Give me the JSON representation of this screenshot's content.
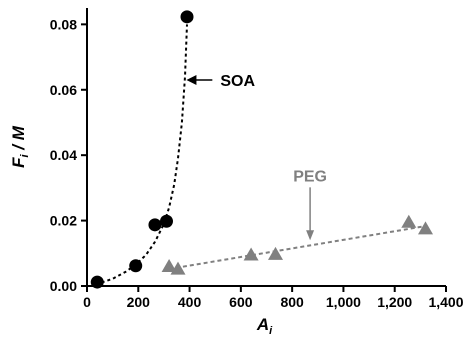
{
  "chart_data": {
    "type": "scatter",
    "title": "",
    "xlabel": {
      "main": "A",
      "sub": "i"
    },
    "ylabel": {
      "main": "F",
      "sub": "i",
      "rest": " / M"
    },
    "xlim": [
      0,
      1400
    ],
    "ylim": [
      0,
      0.085
    ],
    "x_ticks": [
      0,
      200,
      400,
      600,
      800,
      1000,
      1200,
      1400
    ],
    "x_tick_labels": [
      "0",
      "200",
      "400",
      "600",
      "800",
      "1,000",
      "1,200",
      "1,400"
    ],
    "y_ticks": [
      0,
      0.02,
      0.04,
      0.06,
      0.08
    ],
    "y_tick_labels": [
      "0.00",
      "0.02",
      "0.04",
      "0.06",
      "0.08"
    ],
    "grid": false,
    "series": [
      {
        "name": "SOA",
        "marker": "circle",
        "color": "#000000",
        "x": [
          40,
          190,
          265,
          310,
          390
        ],
        "y": [
          0.0012,
          0.0062,
          0.0187,
          0.0198,
          0.0823
        ],
        "fit": {
          "style": "dashed",
          "x": [
            35,
            100,
            150,
            190,
            230,
            265,
            300,
            320,
            340,
            355,
            370,
            382,
            390
          ],
          "y": [
            0.0005,
            0.0022,
            0.0043,
            0.0065,
            0.0095,
            0.0135,
            0.019,
            0.024,
            0.031,
            0.039,
            0.05,
            0.064,
            0.08
          ]
        },
        "annotation": {
          "text": "SOA",
          "x": 380,
          "y": 0.063,
          "text_x": 520,
          "text_y": 0.063
        }
      },
      {
        "name": "PEG",
        "marker": "triangle",
        "color": "#808080",
        "x": [
          320,
          355,
          640,
          735,
          1255,
          1320
        ],
        "y": [
          0.0058,
          0.005,
          0.0093,
          0.0095,
          0.0193,
          0.0173
        ],
        "fit": {
          "style": "dashed",
          "x": [
            320,
            1320
          ],
          "y": [
            0.0052,
            0.0183
          ]
        },
        "annotation": {
          "text": "PEG",
          "x": 870,
          "y": 0.014,
          "text_x": 870,
          "text_y": 0.032
        }
      }
    ]
  }
}
